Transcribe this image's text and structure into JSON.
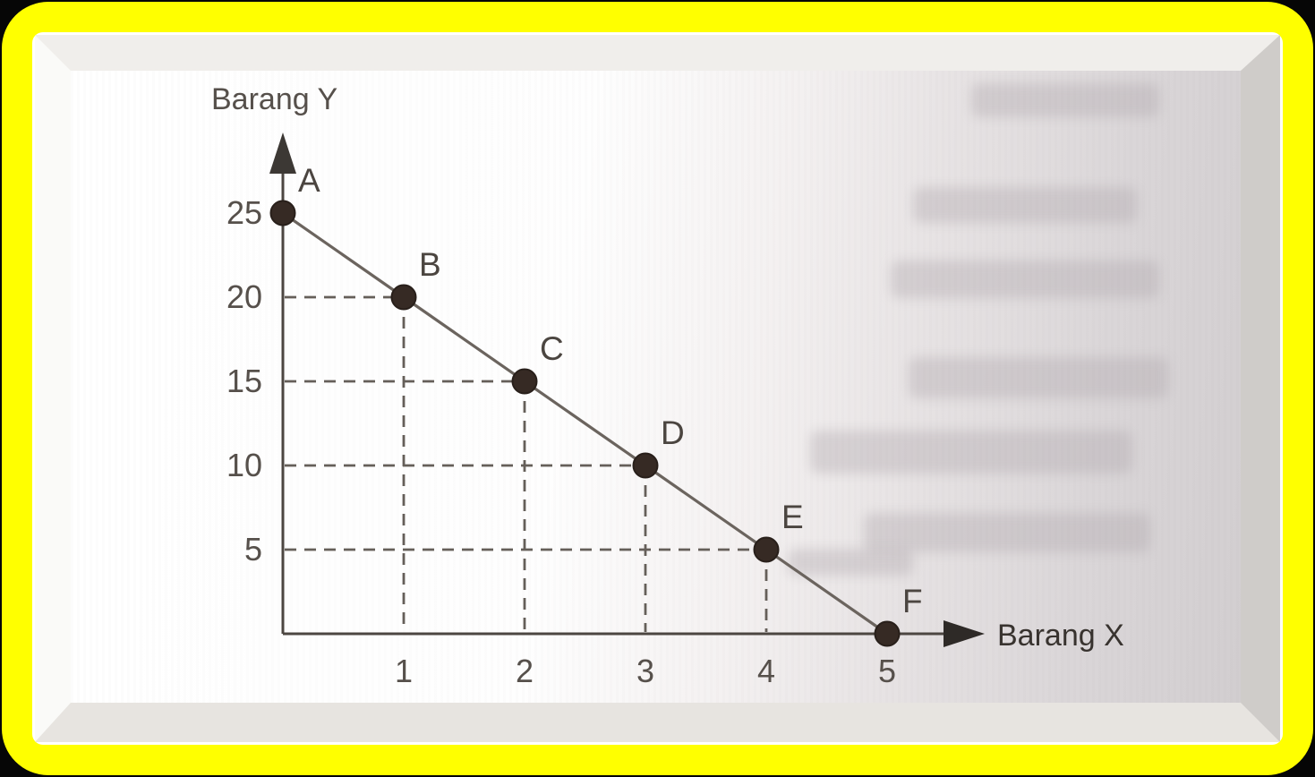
{
  "frame": {
    "border_color": "#ffff00",
    "outer_background": "#000000",
    "page_background": "#ffffff"
  },
  "chart_data": {
    "type": "line",
    "title": "",
    "xlabel": "Barang X",
    "ylabel": "Barang Y",
    "x_ticks": [
      1,
      2,
      3,
      4,
      5
    ],
    "y_ticks": [
      25,
      20,
      15,
      10,
      5
    ],
    "xlim": [
      0,
      5.6
    ],
    "ylim": [
      0,
      28
    ],
    "grid": "dashed guide lines from each interior point to both axes",
    "legend_position": "none",
    "points": [
      {
        "label": "A",
        "x": 0,
        "y": 25
      },
      {
        "label": "B",
        "x": 1,
        "y": 20
      },
      {
        "label": "C",
        "x": 2,
        "y": 15
      },
      {
        "label": "D",
        "x": 3,
        "y": 10
      },
      {
        "label": "E",
        "x": 4,
        "y": 5
      },
      {
        "label": "F",
        "x": 5,
        "y": 0
      }
    ],
    "colors": {
      "line": "#6b645e",
      "axis": "#4c4641",
      "guide": "#655f59",
      "point": "#362a24",
      "point_stroke": "#281f1a",
      "tick_text": "#56504b",
      "point_label_text": "#4b4540",
      "x_axis_label_text": "#38332f"
    }
  }
}
